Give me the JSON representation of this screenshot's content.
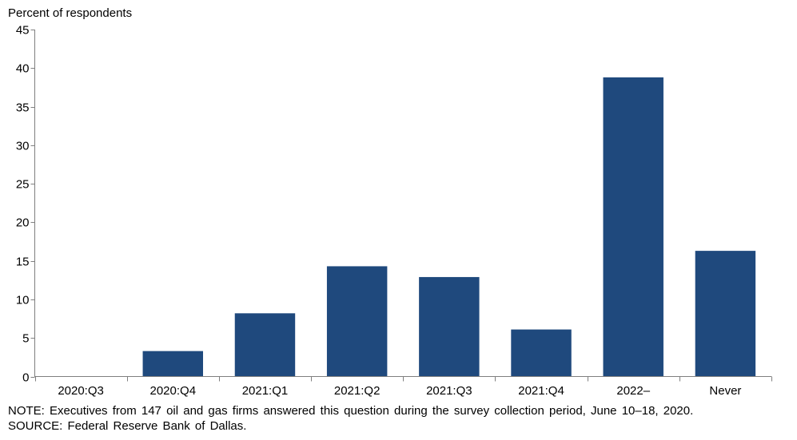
{
  "chart_data": {
    "type": "bar",
    "ylabel": "Percent of respondents",
    "categories": [
      "2020:Q3",
      "2020:Q4",
      "2021:Q1",
      "2021:Q2",
      "2021:Q3",
      "2021:Q4",
      "2022–",
      "Never"
    ],
    "values": [
      0,
      3.3,
      8.2,
      14.3,
      12.9,
      6.1,
      38.8,
      16.3
    ],
    "ylim": [
      0,
      45
    ],
    "yticks": [
      0,
      5,
      10,
      15,
      20,
      25,
      30,
      35,
      40,
      45
    ],
    "grid": false,
    "bar_color": "#1f497d"
  },
  "footer": {
    "note": "NOTE: Executives from 147 oil and gas firms answered this question during the survey collection period, June 10–18, 2020.",
    "source": "SOURCE: Federal Reserve Bank of Dallas."
  }
}
